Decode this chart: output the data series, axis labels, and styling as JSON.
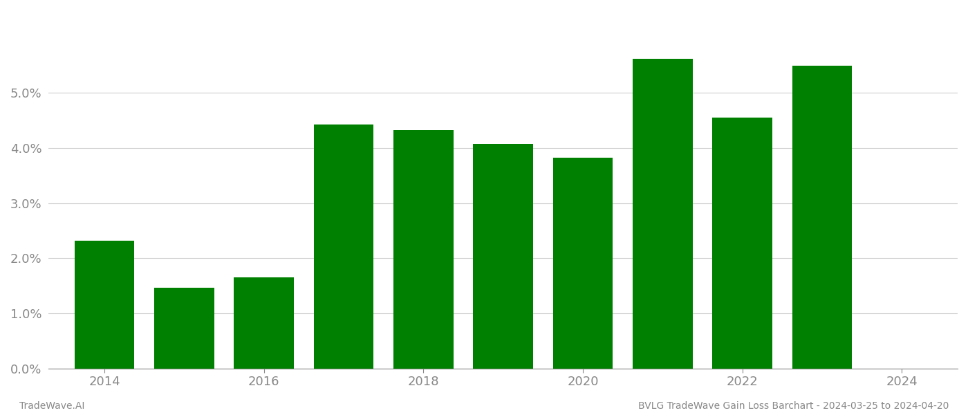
{
  "years": [
    2014,
    2015,
    2016,
    2017,
    2018,
    2019,
    2020,
    2021,
    2022,
    2023
  ],
  "values": [
    0.0232,
    0.0147,
    0.0165,
    0.0443,
    0.0433,
    0.0407,
    0.0382,
    0.0562,
    0.0455,
    0.055
  ],
  "bar_color": "#008000",
  "footer_left": "TradeWave.AI",
  "footer_right": "BVLG TradeWave Gain Loss Barchart - 2024-03-25 to 2024-04-20",
  "ylim": [
    0,
    0.065
  ],
  "yticks": [
    0.0,
    0.01,
    0.02,
    0.03,
    0.04,
    0.05
  ],
  "xticks": [
    2014,
    2016,
    2018,
    2020,
    2022,
    2024
  ],
  "xlim": [
    2013.3,
    2024.7
  ],
  "background_color": "#ffffff",
  "grid_color": "#cccccc",
  "bar_width": 0.75,
  "footer_fontsize": 10,
  "tick_fontsize": 13,
  "tick_color": "#888888",
  "axis_color": "#888888"
}
